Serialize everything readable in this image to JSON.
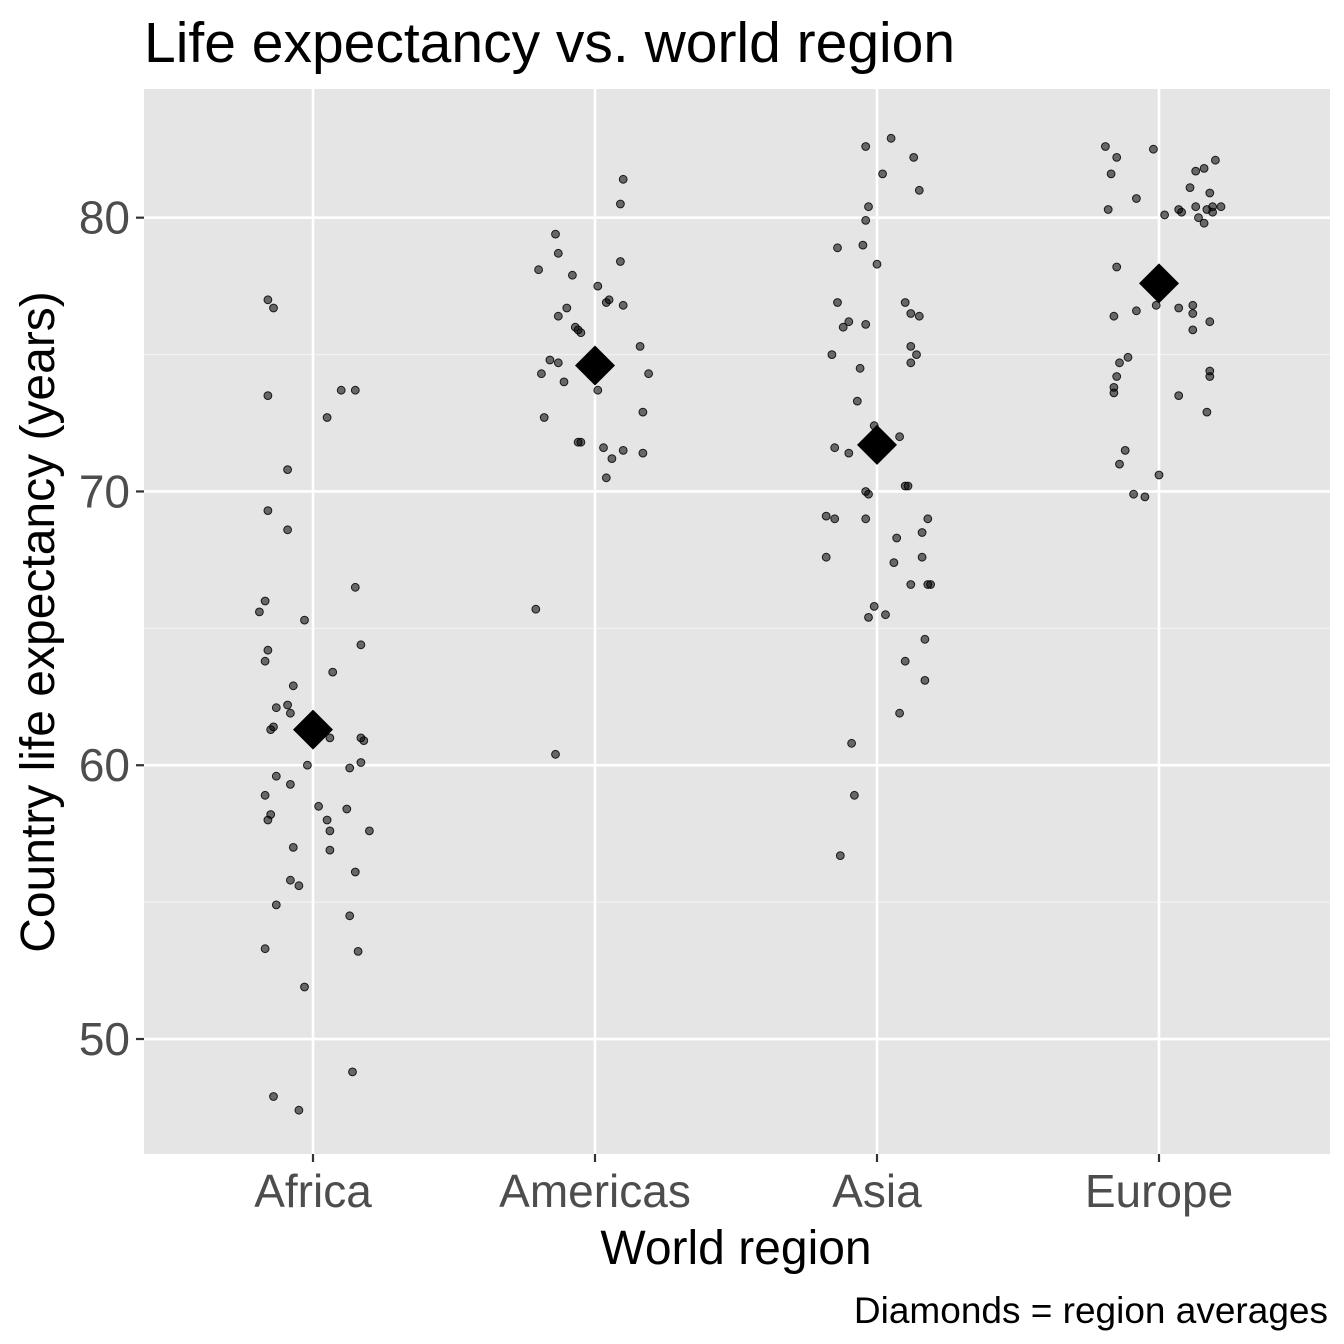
{
  "chart_data": {
    "type": "scatter",
    "title": "Life expectancy vs. world region",
    "xlabel": "World region",
    "ylabel": "Country life expectancy (years)",
    "caption": "Diamonds = region averages",
    "categories": [
      "Africa",
      "Americas",
      "Asia",
      "Europe"
    ],
    "ylim": [
      45.8,
      84.7
    ],
    "yticks": [
      50,
      60,
      70,
      80
    ],
    "grid": true,
    "background_color": "#e5e5e5",
    "point_color": "#000000",
    "series": [
      {
        "category": "Africa",
        "mean": 61.3,
        "points": [
          [
            -0.16,
            77.0
          ],
          [
            -0.14,
            76.7
          ],
          [
            -0.16,
            73.5
          ],
          [
            -0.09,
            70.8
          ],
          [
            -0.16,
            69.3
          ],
          [
            -0.09,
            68.6
          ],
          [
            -0.19,
            65.6
          ],
          [
            -0.17,
            66.0
          ],
          [
            -0.03,
            65.3
          ],
          [
            -0.16,
            64.2
          ],
          [
            -0.17,
            63.8
          ],
          [
            -0.07,
            62.9
          ],
          [
            -0.13,
            62.1
          ],
          [
            -0.09,
            62.2
          ],
          [
            -0.08,
            61.9
          ],
          [
            -0.15,
            61.3
          ],
          [
            -0.14,
            61.4
          ],
          [
            -0.13,
            59.6
          ],
          [
            -0.08,
            59.3
          ],
          [
            -0.17,
            58.9
          ],
          [
            -0.15,
            58.2
          ],
          [
            -0.16,
            58.0
          ],
          [
            -0.02,
            60.0
          ],
          [
            -0.07,
            57.0
          ],
          [
            -0.08,
            55.8
          ],
          [
            -0.05,
            55.6
          ],
          [
            -0.13,
            54.9
          ],
          [
            -0.17,
            53.3
          ],
          [
            -0.03,
            51.9
          ],
          [
            -0.05,
            47.4
          ],
          [
            -0.14,
            47.9
          ],
          [
            0.05,
            72.7
          ],
          [
            0.1,
            73.7
          ],
          [
            0.15,
            73.7
          ],
          [
            0.15,
            66.5
          ],
          [
            0.17,
            64.4
          ],
          [
            0.07,
            63.4
          ],
          [
            0.06,
            61.0
          ],
          [
            0.17,
            61.0
          ],
          [
            0.18,
            60.9
          ],
          [
            0.17,
            60.1
          ],
          [
            0.13,
            59.9
          ],
          [
            0.02,
            58.5
          ],
          [
            0.12,
            58.4
          ],
          [
            0.05,
            58.0
          ],
          [
            0.06,
            57.6
          ],
          [
            0.2,
            57.6
          ],
          [
            0.06,
            56.9
          ],
          [
            0.15,
            56.1
          ],
          [
            0.13,
            54.5
          ],
          [
            0.16,
            53.2
          ],
          [
            0.14,
            48.8
          ]
        ]
      },
      {
        "category": "Americas",
        "mean": 74.6,
        "points": [
          [
            -0.14,
            79.4
          ],
          [
            -0.13,
            78.7
          ],
          [
            -0.2,
            78.1
          ],
          [
            -0.08,
            77.9
          ],
          [
            -0.1,
            76.7
          ],
          [
            -0.13,
            76.4
          ],
          [
            -0.07,
            76.0
          ],
          [
            -0.05,
            75.8
          ],
          [
            -0.06,
            75.9
          ],
          [
            -0.16,
            74.8
          ],
          [
            -0.13,
            74.7
          ],
          [
            -0.19,
            74.3
          ],
          [
            -0.11,
            74.0
          ],
          [
            -0.18,
            72.7
          ],
          [
            -0.06,
            71.8
          ],
          [
            -0.05,
            71.8
          ],
          [
            -0.21,
            65.7
          ],
          [
            -0.14,
            60.4
          ],
          [
            0.1,
            81.4
          ],
          [
            0.09,
            80.5
          ],
          [
            0.09,
            78.4
          ],
          [
            0.01,
            77.5
          ],
          [
            0.05,
            77.0
          ],
          [
            0.04,
            76.9
          ],
          [
            0.1,
            76.8
          ],
          [
            0.16,
            75.3
          ],
          [
            0.19,
            74.3
          ],
          [
            0.01,
            73.7
          ],
          [
            0.17,
            72.9
          ],
          [
            0.03,
            71.6
          ],
          [
            0.1,
            71.5
          ],
          [
            0.17,
            71.4
          ],
          [
            0.06,
            71.2
          ],
          [
            0.04,
            70.5
          ]
        ]
      },
      {
        "category": "Asia",
        "mean": 71.7,
        "points": [
          [
            -0.04,
            82.6
          ],
          [
            -0.03,
            80.4
          ],
          [
            -0.04,
            79.9
          ],
          [
            -0.14,
            78.9
          ],
          [
            -0.05,
            79.0
          ],
          [
            -0.14,
            76.9
          ],
          [
            -0.1,
            76.2
          ],
          [
            -0.12,
            76.0
          ],
          [
            -0.04,
            76.1
          ],
          [
            -0.16,
            75.0
          ],
          [
            -0.06,
            74.5
          ],
          [
            -0.07,
            73.3
          ],
          [
            -0.15,
            71.6
          ],
          [
            -0.1,
            71.4
          ],
          [
            -0.04,
            70.0
          ],
          [
            -0.03,
            69.9
          ],
          [
            -0.18,
            69.1
          ],
          [
            -0.15,
            69.0
          ],
          [
            -0.04,
            69.0
          ],
          [
            -0.18,
            67.6
          ],
          [
            -0.03,
            65.4
          ],
          [
            -0.01,
            65.8
          ],
          [
            -0.09,
            60.8
          ],
          [
            -0.08,
            58.9
          ],
          [
            -0.13,
            56.7
          ],
          [
            0.05,
            82.9
          ],
          [
            0.13,
            82.2
          ],
          [
            0.02,
            81.6
          ],
          [
            0.15,
            81.0
          ],
          [
            0.0,
            78.3
          ],
          [
            0.1,
            76.9
          ],
          [
            0.12,
            76.5
          ],
          [
            0.15,
            76.4
          ],
          [
            0.12,
            75.3
          ],
          [
            0.14,
            75.0
          ],
          [
            0.12,
            74.7
          ],
          [
            -0.01,
            72.4
          ],
          [
            0.08,
            72.0
          ],
          [
            0.02,
            71.8
          ],
          [
            0.1,
            70.2
          ],
          [
            0.11,
            70.2
          ],
          [
            0.18,
            69.0
          ],
          [
            0.16,
            68.5
          ],
          [
            0.07,
            68.3
          ],
          [
            0.16,
            67.6
          ],
          [
            0.06,
            67.4
          ],
          [
            0.12,
            66.6
          ],
          [
            0.18,
            66.6
          ],
          [
            0.19,
            66.6
          ],
          [
            0.03,
            65.5
          ],
          [
            0.17,
            64.6
          ],
          [
            0.1,
            63.8
          ],
          [
            0.17,
            63.1
          ],
          [
            0.08,
            61.9
          ]
        ]
      },
      {
        "category": "Europe",
        "mean": 77.6,
        "points": [
          [
            -0.19,
            82.6
          ],
          [
            -0.15,
            82.2
          ],
          [
            -0.17,
            81.6
          ],
          [
            -0.18,
            80.3
          ],
          [
            -0.15,
            78.2
          ],
          [
            -0.08,
            80.7
          ],
          [
            -0.02,
            82.5
          ],
          [
            -0.16,
            76.4
          ],
          [
            -0.08,
            76.6
          ],
          [
            -0.01,
            76.8
          ],
          [
            -0.11,
            74.9
          ],
          [
            -0.14,
            74.7
          ],
          [
            -0.15,
            74.2
          ],
          [
            -0.16,
            73.8
          ],
          [
            -0.16,
            73.6
          ],
          [
            -0.12,
            71.5
          ],
          [
            -0.14,
            71.0
          ],
          [
            -0.09,
            69.9
          ],
          [
            -0.05,
            69.8
          ],
          [
            0.02,
            80.1
          ],
          [
            0.08,
            80.2
          ],
          [
            0.07,
            80.3
          ],
          [
            0.13,
            80.4
          ],
          [
            0.13,
            81.7
          ],
          [
            0.16,
            81.8
          ],
          [
            0.11,
            81.1
          ],
          [
            0.14,
            80.0
          ],
          [
            0.16,
            79.8
          ],
          [
            0.17,
            80.3
          ],
          [
            0.2,
            82.1
          ],
          [
            0.18,
            80.9
          ],
          [
            0.19,
            80.2
          ],
          [
            0.19,
            80.4
          ],
          [
            0.22,
            80.4
          ],
          [
            0.12,
            76.8
          ],
          [
            0.07,
            76.7
          ],
          [
            0.12,
            75.9
          ],
          [
            0.18,
            76.2
          ],
          [
            0.12,
            76.5
          ],
          [
            0.18,
            74.4
          ],
          [
            0.18,
            74.2
          ],
          [
            0.07,
            73.5
          ],
          [
            0.17,
            72.9
          ],
          [
            0.0,
            70.6
          ]
        ]
      }
    ]
  }
}
